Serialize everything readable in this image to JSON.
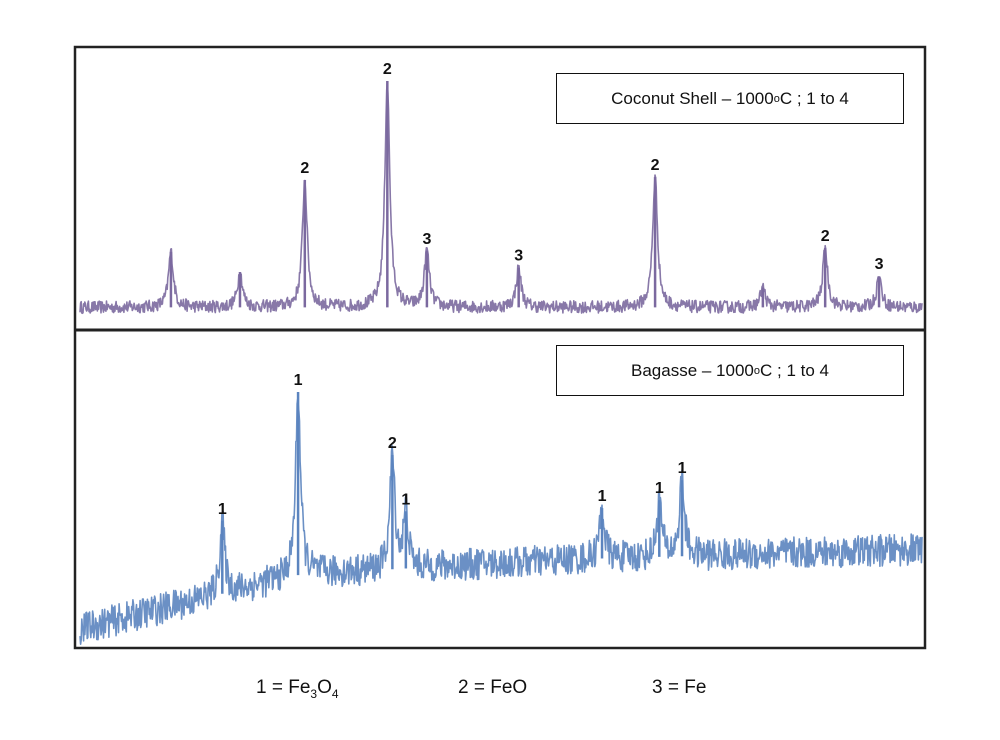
{
  "chart_data": [
    {
      "type": "line",
      "title": "Coconut Shell – 1000°C ; 1 to 4",
      "legend": {
        "sample": "Coconut Shell – 1000",
        "degree": "o",
        "rest": "C ; 1 to 4"
      },
      "legend_placement": "top-right",
      "color": "#7b699f",
      "xlim": [
        0,
        100
      ],
      "ylim": [
        0,
        100
      ],
      "baseline": [
        [
          0,
          8
        ],
        [
          100,
          8
        ]
      ],
      "noise": 2.2,
      "peaks": [
        {
          "x": 10.8,
          "y": 27.6,
          "label": ""
        },
        {
          "x": 19.0,
          "y": 20.5,
          "label": ""
        },
        {
          "x": 26.7,
          "y": 53,
          "label": "2"
        },
        {
          "x": 36.5,
          "y": 88,
          "label": "2"
        },
        {
          "x": 41.2,
          "y": 28,
          "label": "3"
        },
        {
          "x": 52.1,
          "y": 22,
          "label": "3"
        },
        {
          "x": 68.3,
          "y": 54,
          "label": "2"
        },
        {
          "x": 81.1,
          "y": 15,
          "label": ""
        },
        {
          "x": 88.5,
          "y": 29,
          "label": "2"
        },
        {
          "x": 94.9,
          "y": 19,
          "label": "3"
        }
      ]
    },
    {
      "type": "line",
      "title": "Bagasse – 1000°C ; 1 to 4",
      "legend": {
        "sample": "Bagasse – 1000",
        "degree": "o",
        "rest": "C ; 1 to 4"
      },
      "legend_placement": "top-right",
      "color": "#5b84bf",
      "xlim": [
        0,
        100
      ],
      "ylim": [
        0,
        100
      ],
      "baseline": [
        [
          0,
          6
        ],
        [
          26,
          23
        ],
        [
          45,
          26
        ],
        [
          60,
          28
        ],
        [
          100,
          31
        ]
      ],
      "noise": 5,
      "peaks": [
        {
          "x": 16.9,
          "y": 40,
          "label": "1"
        },
        {
          "x": 25.9,
          "y": 80.5,
          "label": "1"
        },
        {
          "x": 37.1,
          "y": 60.7,
          "label": "2"
        },
        {
          "x": 38.7,
          "y": 43,
          "label": "1"
        },
        {
          "x": 62.0,
          "y": 44,
          "label": "1"
        },
        {
          "x": 68.8,
          "y": 46.5,
          "label": "1"
        },
        {
          "x": 71.5,
          "y": 52.8,
          "label": "1"
        }
      ]
    }
  ],
  "key": [
    {
      "num": "1 = ",
      "formula": "Fe",
      "sub1": "3",
      "mid": "O",
      "sub2": "4"
    },
    {
      "num": "2 = ",
      "formula": "FeO"
    },
    {
      "num": "3 = ",
      "formula": "Fe"
    }
  ]
}
